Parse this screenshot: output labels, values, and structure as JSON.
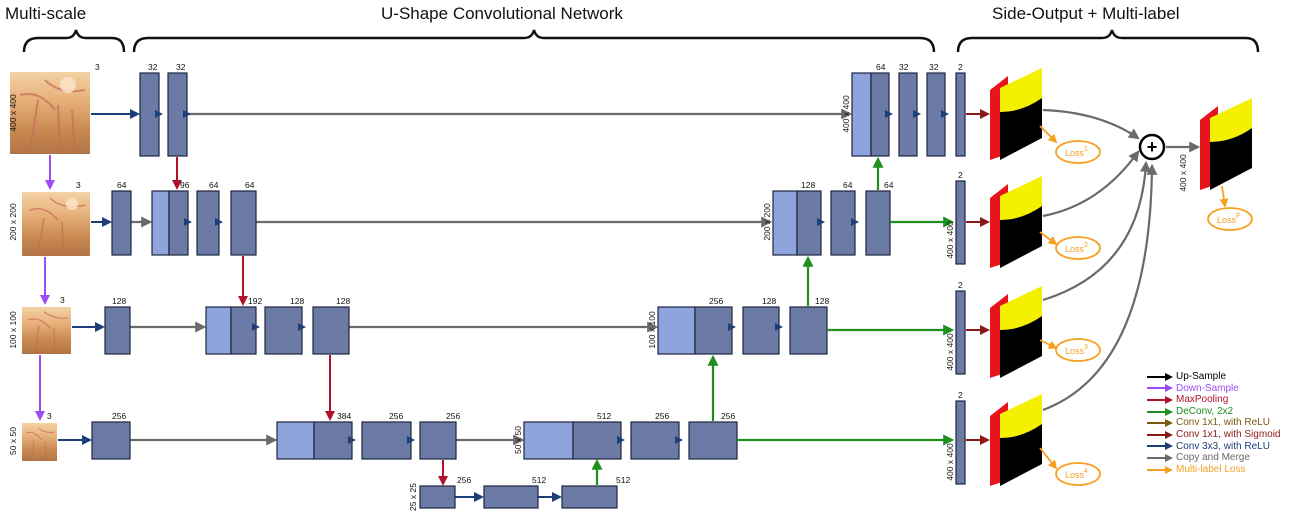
{
  "sections": {
    "multiscale": "Multi-scale",
    "unet": "U-Shape Convolutional Network",
    "sideoutput": "Side-Output + Multi-label"
  },
  "scales": {
    "s400": "400 x 400",
    "s200": "200 x 200",
    "s100": "100 x 100",
    "s50": "50 x 50",
    "s25": "25 x 25"
  },
  "channels": {
    "in1": "3",
    "in2": "3",
    "in3": "3",
    "in4": "3",
    "e1a": "32",
    "e1b": "32",
    "e2a": "64",
    "e2b": "96",
    "e2c": "64",
    "e2d": "64",
    "e3a": "128",
    "e3b": "192",
    "e3c": "128",
    "e3d": "128",
    "e4a": "256",
    "e4b": "384",
    "e4c": "256",
    "e4d": "256",
    "b1": "256",
    "b2": "512",
    "b3": "512",
    "d4a": "512",
    "d4b": "256",
    "d4c": "256",
    "d3a": "256",
    "d3b": "128",
    "d3c": "128",
    "d2a": "128",
    "d2b": "64",
    "d2c": "64",
    "d1a": "64",
    "d1b": "32",
    "d1c": "32",
    "side1": "2",
    "side2": "2",
    "side3": "2",
    "side4": "2"
  },
  "losses": {
    "l1": "Loss",
    "l1sup": "1",
    "l2": "Loss",
    "l2sup": "2",
    "l3": "Loss",
    "l3sup": "3",
    "l4": "Loss",
    "l4sup": "4",
    "lf": "Loss",
    "lfsup": "F"
  },
  "fuse_symbol": "+",
  "legend": [
    {
      "label": "Up-Sample",
      "color": "#000000"
    },
    {
      "label": "Down-Sample",
      "color": "#9b4cf5"
    },
    {
      "label": "MaxPooling",
      "color": "#b0102c"
    },
    {
      "label": "DeConv, 2x2",
      "color": "#1f8f1f"
    },
    {
      "label": "Conv 1x1, with ReLU",
      "color": "#7a5a10"
    },
    {
      "label": "Conv 1x1, with Sigmoid",
      "color": "#8a1a1a"
    },
    {
      "label": "Conv 3x3, with ReLU",
      "color": "#1e3e78"
    },
    {
      "label": "Copy and Merge",
      "color": "#6a6a6a"
    },
    {
      "label": "Multi-label Loss",
      "color": "#f5a020"
    }
  ],
  "colors": {
    "block": "#6b7ba6",
    "block_light": "#8fa4dc",
    "block_border": "#1d2540",
    "conv": "#1e3e78",
    "pool": "#b0102c",
    "down": "#9b4cf5",
    "deconv": "#1f8f1f",
    "copy": "#6a6a6a",
    "sigmoid": "#8a1a1a",
    "loss": "#f5a020"
  }
}
